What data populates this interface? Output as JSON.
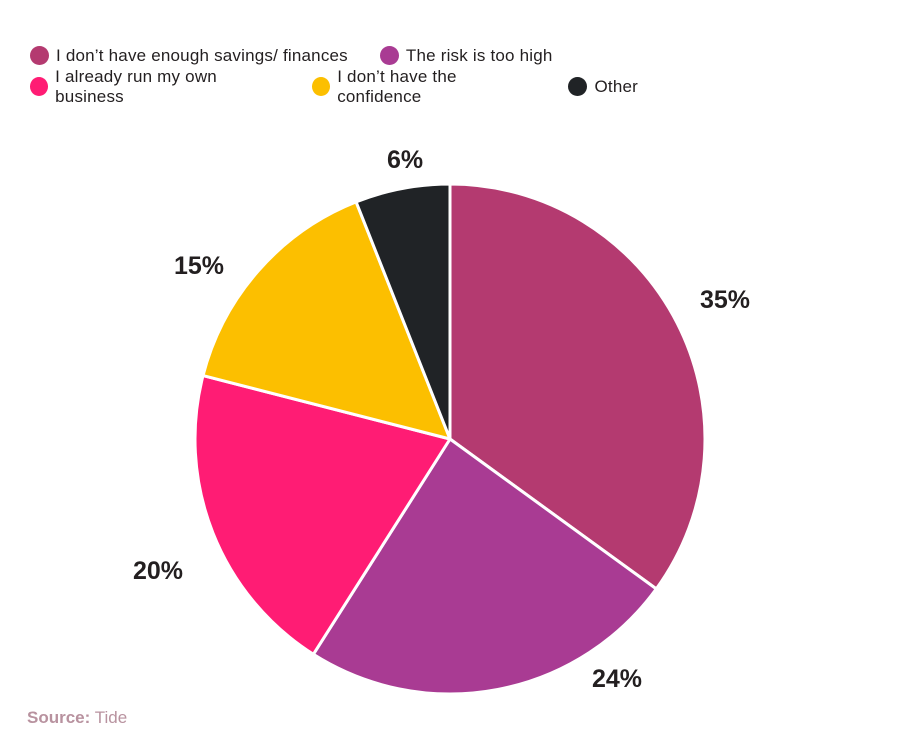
{
  "chart_data": {
    "type": "pie",
    "title": "",
    "categories": [
      "I don’t have enough savings/ finances",
      "The risk is too high",
      "I already run my own business",
      "I don’t have the confidence",
      "Other"
    ],
    "values": [
      35,
      24,
      20,
      15,
      6
    ],
    "colors": [
      "#b43a70",
      "#a93b93",
      "#ff1c74",
      "#fcbf00",
      "#202326"
    ],
    "labels": [
      "35%",
      "24%",
      "20%",
      "15%",
      "6%"
    ],
    "legend_position": "top-left"
  },
  "legend": {
    "row1": [
      {
        "label": "I don’t have enough savings/ finances",
        "color": "#b43a70"
      },
      {
        "label": "The risk is too high",
        "color": "#a93b93"
      }
    ],
    "row2": [
      {
        "label": "I already run my own business",
        "color": "#ff1c74"
      },
      {
        "label": "I don’t have the confidence",
        "color": "#fcbf00"
      },
      {
        "label": "Other",
        "color": "#202326"
      }
    ]
  },
  "source": {
    "prefix": "Source:",
    "name": "Tide"
  }
}
